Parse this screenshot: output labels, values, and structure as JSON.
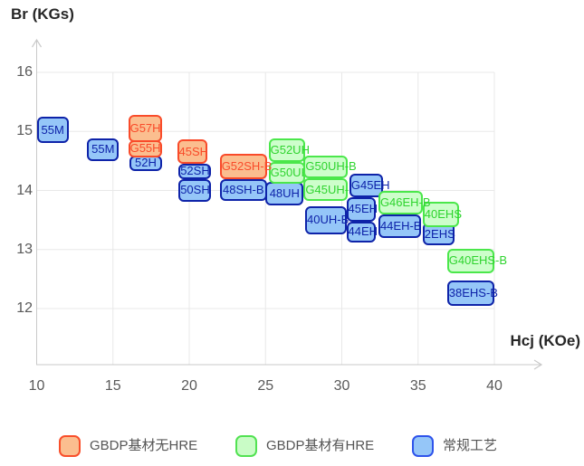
{
  "chart_data": {
    "type": "scatter",
    "subtype": "grade-range-boxes",
    "title": "",
    "ylabel": "Br (KGs)",
    "xlabel": "Hcj (KOe)",
    "x_ticks": [
      10,
      15,
      20,
      25,
      30,
      35,
      40
    ],
    "y_ticks": [
      16,
      15,
      14,
      13,
      12
    ],
    "xlim": [
      10,
      43
    ],
    "ylim": [
      11.1,
      16.5
    ],
    "grid": true,
    "legend_position": "bottom",
    "series_styles": {
      "orange": {
        "name": "GBDP基材无HRE",
        "fill": "#FBBE8F",
        "border": "#F94B2A",
        "text": "#F94B2A"
      },
      "green": {
        "name": "GBDP基材有HRE",
        "fill": "#CDFECB",
        "border": "#4BE74B",
        "text": "#2FD42F"
      },
      "blue": {
        "name": "常规工艺",
        "fill": "#95C6F8",
        "border": "#0E23A9",
        "text": "#0E23A9"
      }
    },
    "boxes": [
      {
        "label": "55M",
        "series": "blue",
        "hcj": [
          10.0,
          12.1
        ],
        "br": [
          14.8,
          15.25
        ]
      },
      {
        "label": "55M",
        "series": "blue",
        "hcj": [
          13.3,
          15.4
        ],
        "br": [
          14.5,
          14.88
        ]
      },
      {
        "label": "52H",
        "series": "blue",
        "hcj": [
          16.1,
          18.2
        ],
        "br": [
          14.33,
          14.59
        ]
      },
      {
        "label": "G55H",
        "series": "orange",
        "hcj": [
          16.0,
          18.2
        ],
        "br": [
          14.56,
          14.85
        ]
      },
      {
        "label": "G57H",
        "series": "orange",
        "hcj": [
          16.0,
          18.2
        ],
        "br": [
          14.82,
          15.28
        ]
      },
      {
        "label": "50SH",
        "series": "blue",
        "hcj": [
          19.3,
          21.4
        ],
        "br": [
          13.81,
          14.19
        ]
      },
      {
        "label": "52SH",
        "series": "blue",
        "hcj": [
          19.3,
          21.4
        ],
        "br": [
          14.19,
          14.45
        ]
      },
      {
        "label": "45SH",
        "series": "orange",
        "hcj": [
          19.2,
          21.2
        ],
        "br": [
          14.45,
          14.87
        ]
      },
      {
        "label": "48UH",
        "series": "blue",
        "hcj": [
          25.0,
          27.5
        ],
        "br": [
          13.75,
          14.15
        ]
      },
      {
        "label": "G50UH",
        "series": "green",
        "hcj": [
          25.2,
          27.6
        ],
        "br": [
          14.11,
          14.48
        ]
      },
      {
        "label": "G52UH",
        "series": "green",
        "hcj": [
          25.2,
          27.6
        ],
        "br": [
          14.48,
          14.88
        ]
      },
      {
        "label": "48SH-B",
        "series": "blue",
        "hcj": [
          22.0,
          25.1
        ],
        "br": [
          13.82,
          14.19
        ]
      },
      {
        "label": "G52SH-B",
        "series": "orange",
        "hcj": [
          22.0,
          25.1
        ],
        "br": [
          14.19,
          14.62
        ]
      },
      {
        "label": "40UH-B",
        "series": "blue",
        "hcj": [
          27.6,
          30.3
        ],
        "br": [
          13.26,
          13.73
        ]
      },
      {
        "label": "G45UH-B",
        "series": "green",
        "hcj": [
          27.5,
          30.4
        ],
        "br": [
          13.82,
          14.21
        ]
      },
      {
        "label": "G50UH-B",
        "series": "green",
        "hcj": [
          27.5,
          30.4
        ],
        "br": [
          14.21,
          14.59
        ]
      },
      {
        "label": "G45EH",
        "series": "blue",
        "hcj": [
          30.5,
          32.7
        ],
        "br": [
          13.88,
          14.28
        ]
      },
      {
        "label": "44EH",
        "series": "blue",
        "hcj": [
          30.3,
          32.2
        ],
        "br": [
          13.12,
          13.47
        ]
      },
      {
        "label": "45EH",
        "series": "blue",
        "hcj": [
          30.3,
          32.2
        ],
        "br": [
          13.47,
          13.88
        ]
      },
      {
        "label": "2EHS",
        "series": "blue",
        "hcj": [
          35.3,
          37.4
        ],
        "br": [
          13.07,
          13.46
        ]
      },
      {
        "label": "40EHS",
        "series": "green",
        "hcj": [
          35.3,
          37.7
        ],
        "br": [
          13.38,
          13.81
        ]
      },
      {
        "label": "44EH-B",
        "series": "blue",
        "hcj": [
          32.4,
          35.2
        ],
        "br": [
          13.19,
          13.59
        ]
      },
      {
        "label": "G46EH-B",
        "series": "green",
        "hcj": [
          32.4,
          35.3
        ],
        "br": [
          13.59,
          13.99
        ]
      },
      {
        "label": "G40EHS-B",
        "series": "green",
        "hcj": [
          36.9,
          40.0
        ],
        "br": [
          12.6,
          13.01
        ]
      },
      {
        "label": "38EHS-B",
        "series": "blue",
        "hcj": [
          36.9,
          40.0
        ],
        "br": [
          12.04,
          12.47
        ]
      }
    ],
    "legend": {
      "items": [
        {
          "label": "GBDP基材无HRE",
          "fill": "#FBBE8F",
          "border": "#F94F2B"
        },
        {
          "label": "GBDP基材有HRE",
          "fill": "#C9FCC6",
          "border": "#52E252"
        },
        {
          "label": "常规工艺",
          "fill": "#95C6F8",
          "border": "#2F54EB"
        }
      ],
      "lefts": [
        65,
        260,
        455
      ]
    },
    "colors": {
      "grid": "#E8E8E8",
      "axis": "#C9C9C9",
      "tick_text": "#595959",
      "title_text": "#262626",
      "legend_text": "#555555"
    }
  }
}
